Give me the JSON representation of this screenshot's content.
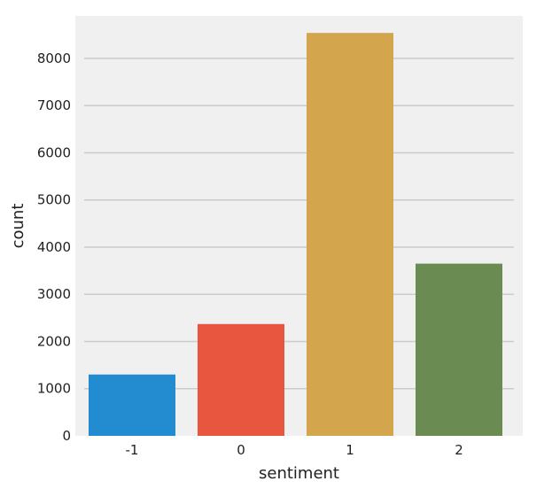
{
  "chart_data": {
    "type": "bar",
    "title": "",
    "xlabel": "sentiment",
    "ylabel": "count",
    "categories": [
      "-1",
      "0",
      "1",
      "2"
    ],
    "values": [
      1300,
      2370,
      8540,
      3650
    ],
    "ylim": [
      0,
      8900
    ],
    "yticks": [
      0,
      1000,
      2000,
      3000,
      4000,
      5000,
      6000,
      7000,
      8000
    ],
    "grid": true,
    "legend": "none",
    "colors": {
      "background": "#f0f0f0",
      "grid": "#cbcbcb",
      "bars": [
        "#238cd0",
        "#e8563f",
        "#d3a64d",
        "#6a8c53"
      ]
    }
  }
}
